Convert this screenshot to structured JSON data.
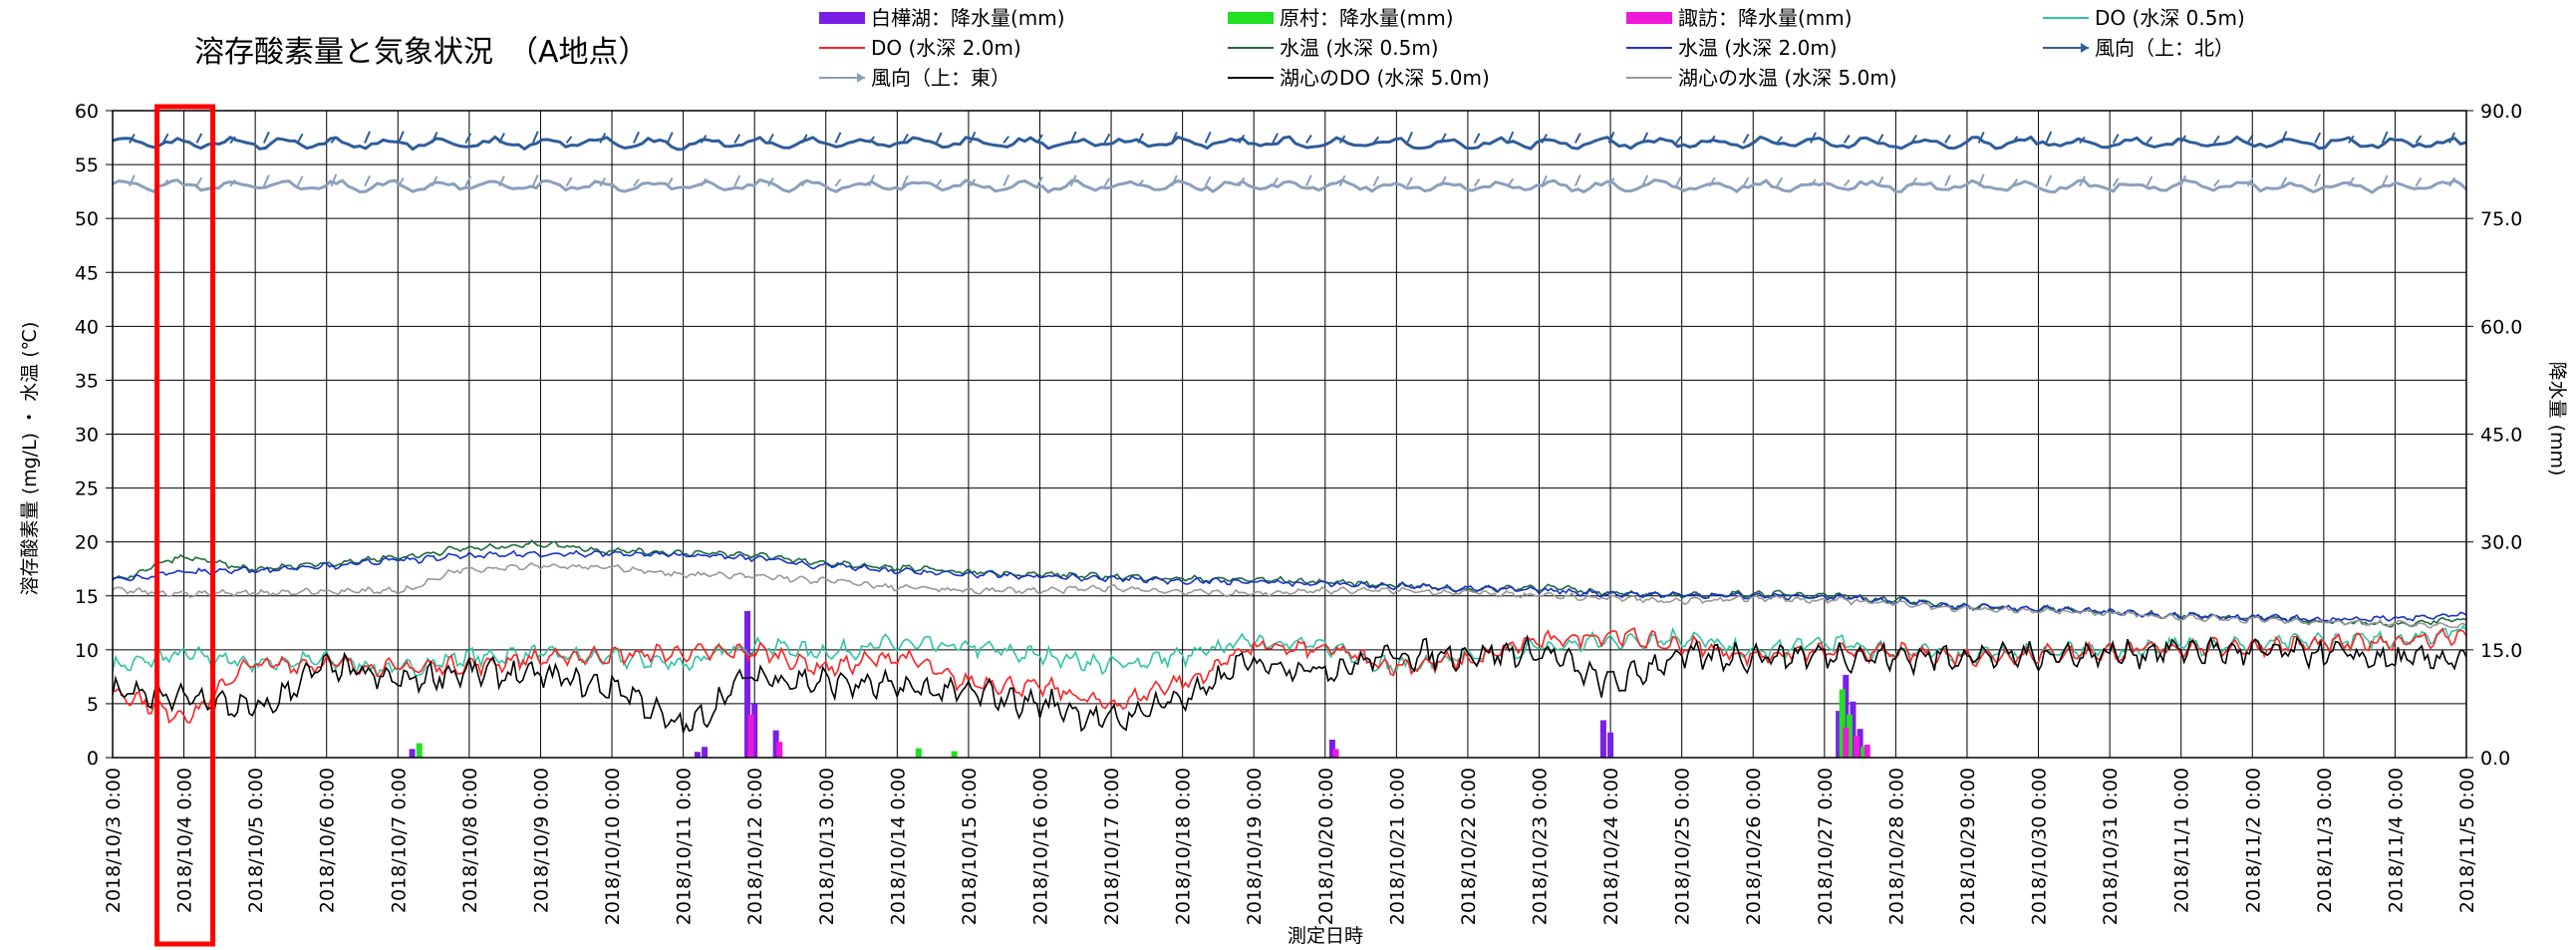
{
  "chart_data": {
    "type": "line",
    "title": "溶存酸素量と気象状況　（A地点）",
    "xlabel": "測定日時",
    "ylabel_left": "溶存酸素量 (mg/L) ・ 水温 (℃)",
    "ylabel_right": "降水量 (mm)",
    "ylim_left": [
      0,
      60
    ],
    "ylim_right": [
      0,
      90
    ],
    "left_ticks": [
      "0",
      "5",
      "10",
      "15",
      "20",
      "25",
      "30",
      "35",
      "40",
      "45",
      "50",
      "55",
      "60"
    ],
    "right_ticks": [
      "0.0",
      "15.0",
      "30.0",
      "45.0",
      "60.0",
      "75.0",
      "90.0"
    ],
    "x_labels": [
      "2018/10/3 0:00",
      "2018/10/4 0:00",
      "2018/10/5 0:00",
      "2018/10/6 0:00",
      "2018/10/7 0:00",
      "2018/10/8 0:00",
      "2018/10/9 0:00",
      "2018/10/10 0:00",
      "2018/10/11 0:00",
      "2018/10/12 0:00",
      "2018/10/13 0:00",
      "2018/10/14 0:00",
      "2018/10/15 0:00",
      "2018/10/16 0:00",
      "2018/10/17 0:00",
      "2018/10/18 0:00",
      "2018/10/19 0:00",
      "2018/10/20 0:00",
      "2018/10/21 0:00",
      "2018/10/22 0:00",
      "2018/10/23 0:00",
      "2018/10/24 0:00",
      "2018/10/25 0:00",
      "2018/10/26 0:00",
      "2018/10/27 0:00",
      "2018/10/28 0:00",
      "2018/10/29 0:00",
      "2018/10/30 0:00",
      "2018/10/31 0:00",
      "2018/11/1 0:00",
      "2018/11/2 0:00",
      "2018/11/3 0:00",
      "2018/11/4 0:00",
      "2018/11/5 0:00"
    ],
    "grid": true,
    "highlight": {
      "label": "2018/10/4 0:00",
      "color": "#ff0000"
    },
    "series": [
      {
        "key": "do05",
        "name": "DO (水深 0.5m)",
        "color": "#2ec4a4",
        "kind": "line",
        "values": [
          8.5,
          9.5,
          8.8,
          9.0,
          8.2,
          9.3,
          9.6,
          9.2,
          8.8,
          10.4,
          9.8,
          10.5,
          10.2,
          9.5,
          8.6,
          9.4,
          10.9,
          10.3,
          8.5,
          9.2,
          10.2,
          10.8,
          11.1,
          9.8,
          10.6,
          9.9,
          9.6,
          9.7,
          10.0,
          10.4,
          10.5,
          10.8,
          11.0,
          11.8
        ]
      },
      {
        "key": "do20",
        "name": "DO (水深 2.0m)",
        "color": "#ff2020",
        "kind": "line",
        "values": [
          6.0,
          4.0,
          8.6,
          8.7,
          8.3,
          8.6,
          9.2,
          9.5,
          9.7,
          9.8,
          8.4,
          9.3,
          7.0,
          6.5,
          5.0,
          7.0,
          10.2,
          10.0,
          8.5,
          9.0,
          10.8,
          11.4,
          10.4,
          9.5,
          9.8,
          9.7,
          9.4,
          9.6,
          9.8,
          10.2,
          10.3,
          10.5,
          10.8,
          11.3
        ]
      },
      {
        "key": "dohc",
        "name": "湖心のDO (水深 5.0m)",
        "color": "#000000",
        "kind": "line",
        "values": [
          6.0,
          5.5,
          4.5,
          8.3,
          7.2,
          7.9,
          7.6,
          6.5,
          3.0,
          7.5,
          7.0,
          6.5,
          6.0,
          5.0,
          3.5,
          5.5,
          8.8,
          8.2,
          9.5,
          9.6,
          9.7,
          7.0,
          9.3,
          9.4,
          9.5,
          9.3,
          9.4,
          9.5,
          9.6,
          10.0,
          9.8,
          9.7,
          9.0,
          9.3
        ]
      },
      {
        "key": "wt05",
        "name": "水温 (水深 0.5m)",
        "color": "#1f6b3a",
        "kind": "line",
        "values": [
          16.5,
          18.5,
          17.5,
          18.0,
          18.6,
          19.4,
          19.8,
          19.2,
          19.0,
          18.8,
          18.0,
          17.6,
          17.2,
          17.0,
          16.8,
          16.6,
          16.5,
          16.3,
          16.0,
          15.6,
          15.8,
          15.3,
          15.0,
          15.2,
          15.1,
          14.6,
          14.0,
          13.8,
          13.5,
          13.2,
          13.0,
          12.6,
          12.4,
          12.8
        ]
      },
      {
        "key": "wt20",
        "name": "水温 (水深 2.0m)",
        "color": "#1a33c8",
        "kind": "line",
        "values": [
          16.5,
          17.2,
          17.4,
          17.8,
          18.3,
          18.7,
          18.9,
          18.9,
          18.8,
          18.5,
          17.8,
          17.3,
          17.0,
          16.8,
          16.6,
          16.4,
          16.3,
          16.1,
          15.9,
          15.7,
          15.5,
          15.2,
          15.1,
          15.0,
          14.9,
          14.5,
          14.0,
          13.8,
          13.5,
          13.2,
          13.0,
          12.8,
          12.9,
          13.2
        ]
      },
      {
        "key": "wthc",
        "name": "湖心の水温 (水深 5.0m)",
        "color": "#999999",
        "kind": "line",
        "values": [
          15.5,
          15.2,
          15.3,
          15.4,
          15.5,
          17.5,
          17.8,
          17.6,
          17.0,
          16.8,
          16.4,
          15.8,
          15.5,
          15.5,
          15.7,
          15.4,
          15.2,
          15.5,
          15.5,
          15.3,
          15.0,
          14.8,
          14.5,
          14.8,
          14.6,
          14.3,
          13.8,
          13.6,
          13.4,
          13.0,
          12.8,
          12.6,
          12.4,
          12.2
        ]
      },
      {
        "key": "windN",
        "name": "風向（上：北）",
        "color": "#2e5d9a",
        "kind": "wind",
        "base": 57
      },
      {
        "key": "windE",
        "name": "風向（上：東）",
        "color": "#8aa0bd",
        "kind": "wind",
        "base": 53
      },
      {
        "key": "rainS",
        "name": "白樺湖：降水量(mm)",
        "color": "#7a1fe8",
        "kind": "rain",
        "points": [
          [
            4.2,
            1.2
          ],
          [
            8.2,
            0.8
          ],
          [
            8.3,
            1.5
          ],
          [
            8.9,
            20.4
          ],
          [
            9.0,
            7.5
          ],
          [
            9.3,
            3.8
          ],
          [
            17.1,
            2.5
          ],
          [
            20.9,
            5.2
          ],
          [
            21.0,
            3.5
          ],
          [
            24.2,
            6.5
          ],
          [
            24.3,
            11.5
          ],
          [
            24.4,
            7.8
          ],
          [
            24.5,
            4.0
          ]
        ]
      },
      {
        "key": "rainH",
        "name": "原村：降水量(mm)",
        "color": "#22e022",
        "kind": "rain",
        "points": [
          [
            4.3,
            2.0
          ],
          [
            11.3,
            1.3
          ],
          [
            11.8,
            0.9
          ],
          [
            24.25,
            9.5
          ],
          [
            24.35,
            6.0
          ],
          [
            24.55,
            1.5
          ]
        ]
      },
      {
        "key": "rainW",
        "name": "諏訪：降水量(mm)",
        "color": "#ee18d8",
        "kind": "rain",
        "points": [
          [
            8.95,
            6.0
          ],
          [
            9.35,
            2.2
          ],
          [
            17.15,
            1.2
          ],
          [
            24.3,
            4.2
          ],
          [
            24.45,
            3.0
          ],
          [
            24.6,
            1.8
          ]
        ]
      }
    ]
  }
}
